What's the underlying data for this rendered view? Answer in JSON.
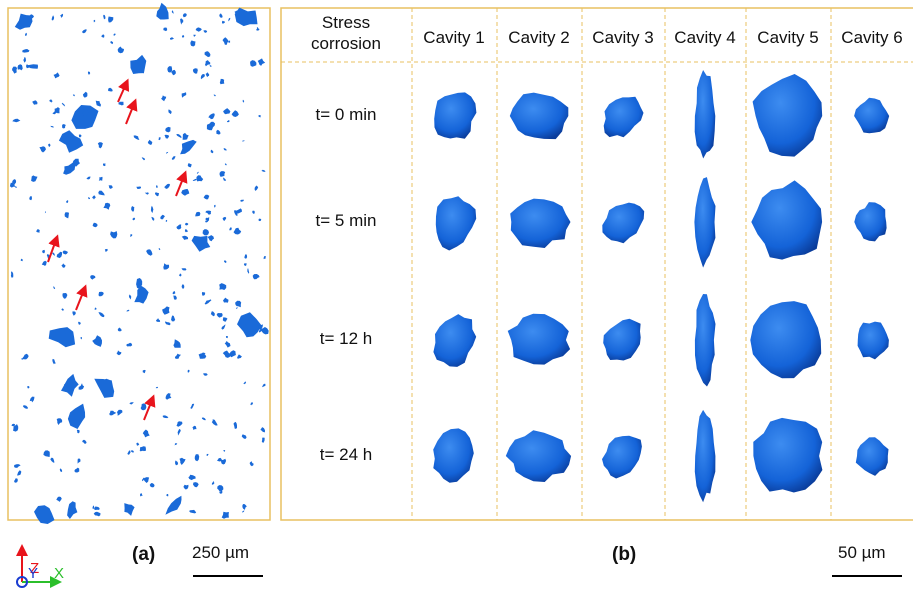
{
  "panel_a": {
    "label": "(a)",
    "scale_bar": "250 µm",
    "axes": {
      "z": "Z",
      "y": "Y",
      "x": "X"
    }
  },
  "panel_b": {
    "label": "(b)",
    "scale_bar": "50 µm",
    "header": "Stress corrosion",
    "columns": [
      "Cavity 1",
      "Cavity 2",
      "Cavity 3",
      "Cavity 4",
      "Cavity 5",
      "Cavity 6"
    ],
    "rows": [
      "t= 0 min",
      "t= 5 min",
      "t= 12 h",
      "t= 24 h"
    ]
  }
}
